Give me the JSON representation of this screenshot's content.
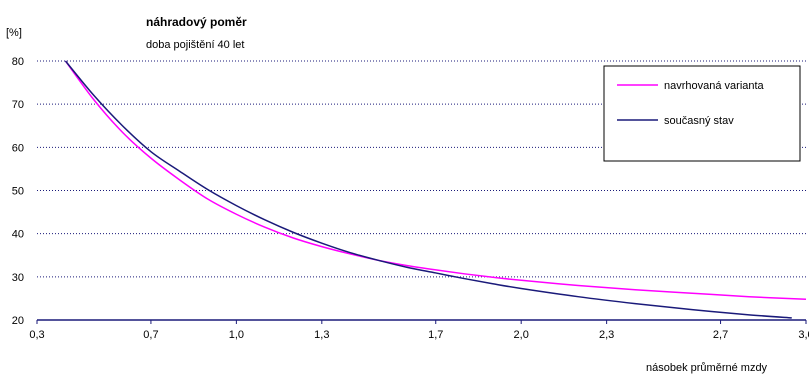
{
  "chart_data": {
    "type": "line",
    "title": "náhradový poměr",
    "subtitle": "doba pojištění 40 let",
    "ylabel": "[%]",
    "xlabel": "násobek průměrné mzdy",
    "xlim": [
      0.3,
      3.0
    ],
    "ylim": [
      20,
      80
    ],
    "x_ticks": [
      "0,3",
      "0,7",
      "1,0",
      "1,3",
      "1,7",
      "2,0",
      "2,3",
      "2,7",
      "3,0"
    ],
    "y_ticks": [
      "20",
      "30",
      "40",
      "50",
      "60",
      "70",
      "80"
    ],
    "grid": true,
    "legend_position": "top-right",
    "series": [
      {
        "name": "navrhovaná varianta",
        "color": "#ff00ff",
        "points": [
          [
            0.4,
            80
          ],
          [
            0.5,
            71
          ],
          [
            0.6,
            63.5
          ],
          [
            0.7,
            57.5
          ],
          [
            0.8,
            52.5
          ],
          [
            0.9,
            48
          ],
          [
            1.0,
            44.5
          ],
          [
            1.1,
            41.5
          ],
          [
            1.2,
            39
          ],
          [
            1.3,
            37
          ],
          [
            1.4,
            35.3
          ],
          [
            1.5,
            33.8
          ],
          [
            1.6,
            32.6
          ],
          [
            1.7,
            31.6
          ],
          [
            1.8,
            30.7
          ],
          [
            1.9,
            29.9
          ],
          [
            2.0,
            29.2
          ],
          [
            2.2,
            28
          ],
          [
            2.4,
            27
          ],
          [
            2.6,
            26.2
          ],
          [
            2.8,
            25.4
          ],
          [
            3.0,
            24.8
          ]
        ]
      },
      {
        "name": "současný stav",
        "color": "#1a1a7a",
        "points": [
          [
            0.4,
            80
          ],
          [
            0.5,
            72
          ],
          [
            0.6,
            65
          ],
          [
            0.7,
            59
          ],
          [
            0.8,
            54.5
          ],
          [
            0.9,
            50.2
          ],
          [
            1.0,
            46.5
          ],
          [
            1.1,
            43.2
          ],
          [
            1.2,
            40.3
          ],
          [
            1.3,
            37.8
          ],
          [
            1.4,
            35.6
          ],
          [
            1.5,
            33.8
          ],
          [
            1.6,
            32.2
          ],
          [
            1.7,
            30.9
          ],
          [
            1.8,
            29.6
          ],
          [
            1.9,
            28.4
          ],
          [
            2.0,
            27.3
          ],
          [
            2.2,
            25.4
          ],
          [
            2.4,
            23.8
          ],
          [
            2.6,
            22.4
          ],
          [
            2.8,
            21.2
          ],
          [
            2.95,
            20.5
          ]
        ]
      }
    ]
  }
}
